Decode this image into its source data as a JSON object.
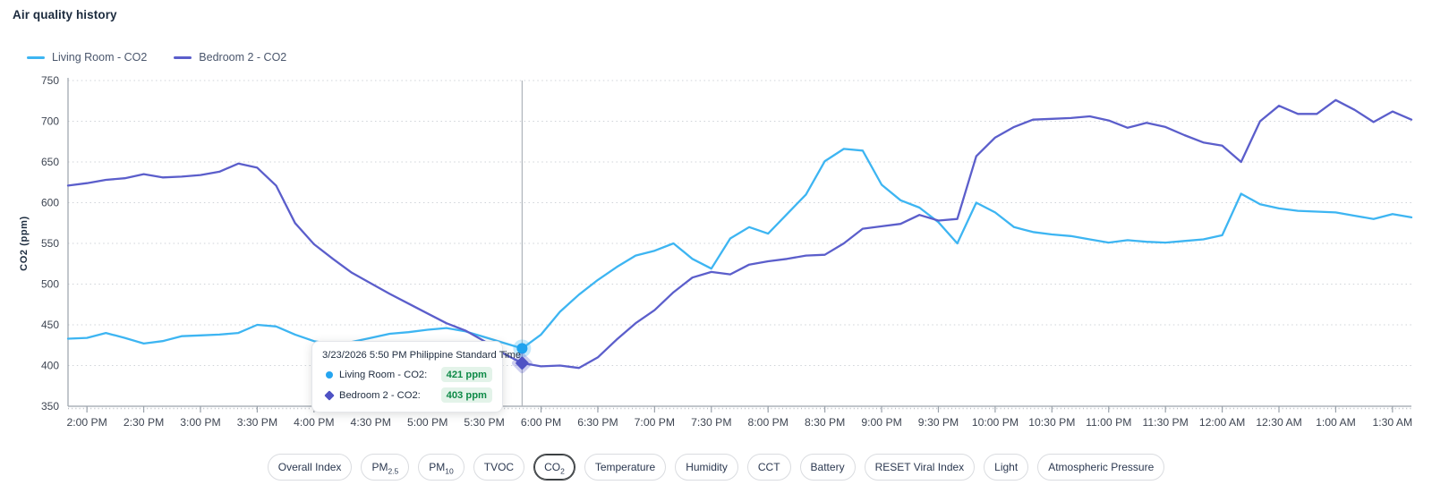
{
  "page": {
    "title": "Air quality history"
  },
  "legend": {
    "items": [
      {
        "label": "Living Room - CO2",
        "color": "#3db5f2"
      },
      {
        "label": "Bedroom 2 - CO2",
        "color": "#5b5ecb"
      }
    ]
  },
  "tooltip": {
    "title": "3/23/2026 5:50 PM Philippine Standard Time",
    "rows": [
      {
        "marker": "circle-icon",
        "color": "#25a5f0",
        "label": "Living Room - CO2:",
        "value": "421 ppm"
      },
      {
        "marker": "diamond-icon",
        "color": "#4f52c4",
        "label": "Bedroom 2 - CO2:",
        "value": "403 ppm"
      }
    ]
  },
  "filters": {
    "selected": "CO2",
    "options": [
      {
        "label": "Overall Index"
      },
      {
        "label": "PM",
        "sub": "2.5"
      },
      {
        "label": "PM",
        "sub": "10"
      },
      {
        "label": "TVOC"
      },
      {
        "label": "CO",
        "sub": "2",
        "selected": true
      },
      {
        "label": "Temperature"
      },
      {
        "label": "Humidity"
      },
      {
        "label": "CCT"
      },
      {
        "label": "Battery"
      },
      {
        "label": "RESET Viral Index"
      },
      {
        "label": "Light"
      },
      {
        "label": "Atmospheric Pressure"
      }
    ]
  },
  "chart_data": {
    "type": "line",
    "title": "Air quality history",
    "ylabel": "CO2 (ppm)",
    "ylim": [
      350,
      750
    ],
    "y_ticks": [
      350,
      400,
      450,
      500,
      550,
      600,
      650,
      700,
      750
    ],
    "grid": "dotted-horizontal",
    "legend_position": "top-left",
    "x_minutes_per_point": 10,
    "x_first_tick_index": 1,
    "x_points_per_tick": 3,
    "x_tick_labels": [
      "2:00 PM",
      "2:30 PM",
      "3:00 PM",
      "3:30 PM",
      "4:00 PM",
      "4:30 PM",
      "5:00 PM",
      "5:30 PM",
      "6:00 PM",
      "6:30 PM",
      "7:00 PM",
      "7:30 PM",
      "8:00 PM",
      "8:30 PM",
      "9:00 PM",
      "9:30 PM",
      "10:00 PM",
      "10:30 PM",
      "11:00 PM",
      "11:30 PM",
      "12:00 AM",
      "12:30 AM",
      "1:00 AM",
      "1:30 AM"
    ],
    "cursor": {
      "index": 24,
      "label": "5:50 PM"
    },
    "series": [
      {
        "name": "Living Room - CO2",
        "color": "#3db5f2",
        "marker": "circle",
        "values": [
          433,
          434,
          440,
          434,
          427,
          430,
          436,
          437,
          438,
          440,
          450,
          448,
          438,
          430,
          426,
          429,
          434,
          439,
          441,
          444,
          446,
          442,
          435,
          428,
          421,
          438,
          466,
          487,
          505,
          521,
          535,
          541,
          550,
          531,
          519,
          556,
          570,
          562,
          586,
          610,
          651,
          666,
          664,
          622,
          603,
          594,
          576,
          550,
          600,
          588,
          570,
          564,
          561,
          559,
          555,
          551,
          554,
          552,
          551,
          553,
          555,
          560,
          611,
          598,
          593,
          590,
          589,
          588,
          584,
          580,
          586,
          582
        ]
      },
      {
        "name": "Bedroom 2 - CO2",
        "color": "#5b5ecb",
        "marker": "diamond",
        "values": [
          621,
          624,
          628,
          630,
          635,
          631,
          632,
          634,
          638,
          648,
          643,
          621,
          575,
          549,
          531,
          514,
          501,
          488,
          476,
          464,
          452,
          443,
          430,
          415,
          403,
          399,
          400,
          397,
          410,
          432,
          452,
          468,
          490,
          508,
          515,
          512,
          524,
          528,
          531,
          535,
          536,
          550,
          568,
          571,
          574,
          585,
          578,
          580,
          657,
          680,
          693,
          702,
          703,
          704,
          706,
          701,
          692,
          698,
          693,
          683,
          674,
          670,
          650,
          700,
          719,
          709,
          709,
          726,
          714,
          699,
          712,
          702
        ]
      }
    ]
  }
}
